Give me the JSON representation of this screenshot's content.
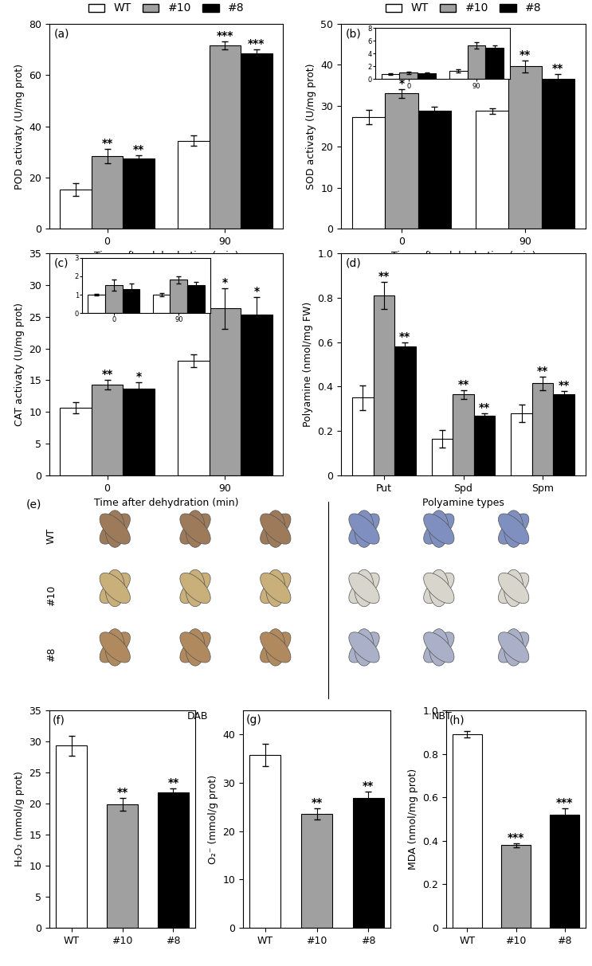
{
  "chart_data": [
    {
      "panel_label": "(a)",
      "type": "bar",
      "ylabel": "POD activaty (U/mg prot)",
      "xlabel": "Time after dehydration (min)",
      "categories": [
        "0",
        "90"
      ],
      "ylim": [
        0,
        80
      ],
      "yticks": [
        0,
        20,
        40,
        60,
        80
      ],
      "legend": "top",
      "series": [
        {
          "name": "WT",
          "color": "#ffffff",
          "values": [
            15.2,
            34.3
          ],
          "errors": [
            2.5,
            2.0
          ],
          "annotations": [
            null,
            null
          ]
        },
        {
          "name": "#10",
          "color": "#a0a0a0",
          "values": [
            28.2,
            71.6
          ],
          "errors": [
            2.8,
            1.5
          ],
          "annotations": [
            "**",
            "***"
          ]
        },
        {
          "name": "#8",
          "color": "#000000",
          "values": [
            27.4,
            68.5
          ],
          "errors": [
            1.3,
            1.5
          ],
          "annotations": [
            "**",
            "***"
          ]
        }
      ]
    },
    {
      "panel_label": "(b)",
      "type": "bar",
      "ylabel": "SOD activaty (U/mg prot)",
      "xlabel": "Time after dehydration (min)",
      "categories": [
        "0",
        "90"
      ],
      "ylim": [
        0,
        50
      ],
      "yticks": [
        0,
        10,
        20,
        30,
        40,
        50
      ],
      "legend": "top",
      "series": [
        {
          "name": "WT",
          "color": "#ffffff",
          "values": [
            27.2,
            28.7
          ],
          "errors": [
            1.8,
            0.7
          ],
          "annotations": [
            null,
            null
          ]
        },
        {
          "name": "#10",
          "color": "#a0a0a0",
          "values": [
            33.0,
            39.6
          ],
          "errors": [
            1.0,
            1.5
          ],
          "annotations": [
            "*",
            "**"
          ]
        },
        {
          "name": "#8",
          "color": "#000000",
          "values": [
            28.8,
            36.6
          ],
          "errors": [
            0.9,
            1.2
          ],
          "annotations": [
            null,
            "**"
          ]
        }
      ],
      "inset": {
        "type": "bar",
        "categories": [
          "0",
          "90"
        ],
        "ylim": [
          0,
          8
        ],
        "yticks": [
          0,
          2,
          4,
          6,
          8
        ],
        "series": [
          {
            "name": "WT",
            "color": "#ffffff",
            "values": [
              0.8,
              1.3
            ],
            "errors": [
              0.15,
              0.2
            ]
          },
          {
            "name": "#10",
            "color": "#a0a0a0",
            "values": [
              1.0,
              5.3
            ],
            "errors": [
              0.2,
              0.5
            ]
          },
          {
            "name": "#8",
            "color": "#000000",
            "values": [
              0.9,
              4.9
            ],
            "errors": [
              0.15,
              0.4
            ]
          }
        ]
      }
    },
    {
      "panel_label": "(c)",
      "type": "bar",
      "ylabel": "CAT activaty (U/mg prot)",
      "xlabel": "Time after dehydration (min)",
      "categories": [
        "0",
        "90"
      ],
      "ylim": [
        0,
        35
      ],
      "yticks": [
        0,
        5,
        10,
        15,
        20,
        25,
        30,
        35
      ],
      "series": [
        {
          "name": "WT",
          "color": "#ffffff",
          "values": [
            10.7,
            18.1
          ],
          "errors": [
            0.9,
            1.0
          ],
          "annotations": [
            null,
            null
          ]
        },
        {
          "name": "#10",
          "color": "#a0a0a0",
          "values": [
            14.3,
            26.3
          ],
          "errors": [
            0.8,
            3.2
          ],
          "annotations": [
            "**",
            "*"
          ]
        },
        {
          "name": "#8",
          "color": "#000000",
          "values": [
            13.7,
            25.3
          ],
          "errors": [
            1.0,
            2.8
          ],
          "annotations": [
            "*",
            "*"
          ]
        }
      ],
      "inset": {
        "type": "bar",
        "categories": [
          "0",
          "90"
        ],
        "ylim": [
          0,
          3
        ],
        "yticks": [
          0,
          1,
          2,
          3
        ],
        "series": [
          {
            "name": "WT",
            "color": "#ffffff",
            "values": [
              1.0,
              1.0
            ],
            "errors": [
              0.05,
              0.1
            ]
          },
          {
            "name": "#10",
            "color": "#a0a0a0",
            "values": [
              1.5,
              1.8
            ],
            "errors": [
              0.3,
              0.2
            ]
          },
          {
            "name": "#8",
            "color": "#000000",
            "values": [
              1.3,
              1.5
            ],
            "errors": [
              0.3,
              0.2
            ]
          }
        ]
      }
    },
    {
      "panel_label": "(d)",
      "type": "bar",
      "ylabel": "Polyamine (nmol/mg FW)",
      "xlabel": "Polyamine types",
      "categories": [
        "Put",
        "Spd",
        "Spm"
      ],
      "ylim": [
        0,
        1.0
      ],
      "yticks": [
        0,
        0.2,
        0.4,
        0.6,
        0.8,
        1.0
      ],
      "series": [
        {
          "name": "WT",
          "color": "#ffffff",
          "values": [
            0.35,
            0.165,
            0.28
          ],
          "errors": [
            0.055,
            0.04,
            0.04
          ],
          "annotations": [
            null,
            null,
            null
          ]
        },
        {
          "name": "#10",
          "color": "#a0a0a0",
          "values": [
            0.81,
            0.365,
            0.415
          ],
          "errors": [
            0.06,
            0.02,
            0.03
          ],
          "annotations": [
            "**",
            "**",
            "**"
          ]
        },
        {
          "name": "#8",
          "color": "#000000",
          "values": [
            0.58,
            0.27,
            0.365
          ],
          "errors": [
            0.02,
            0.01,
            0.015
          ],
          "annotations": [
            "**",
            "**",
            "**"
          ]
        }
      ]
    },
    {
      "panel_label": "(f)",
      "type": "bar",
      "ylabel": "H₂O₂ (mmol/g prot)",
      "categories": [
        "WT",
        "#10",
        "#8"
      ],
      "ylim": [
        0,
        35
      ],
      "yticks": [
        0,
        5,
        10,
        15,
        20,
        25,
        30,
        35
      ],
      "values": [
        29.3,
        19.9,
        21.8
      ],
      "errors": [
        1.6,
        1.0,
        0.6
      ],
      "annotations": [
        null,
        "**",
        "**"
      ],
      "colors": [
        "#ffffff",
        "#a0a0a0",
        "#000000"
      ]
    },
    {
      "panel_label": "(g)",
      "type": "bar",
      "ylabel": "O₂⁻ (mmol/g prot)",
      "categories": [
        "WT",
        "#10",
        "#8"
      ],
      "ylim": [
        0,
        45
      ],
      "yticks": [
        0,
        10,
        20,
        30,
        40
      ],
      "values": [
        35.8,
        23.6,
        26.9
      ],
      "errors": [
        2.3,
        1.2,
        1.3
      ],
      "annotations": [
        null,
        "**",
        "**"
      ],
      "colors": [
        "#ffffff",
        "#a0a0a0",
        "#000000"
      ]
    },
    {
      "panel_label": "(h)",
      "type": "bar",
      "ylabel": "MDA (nmol/mg prot)",
      "categories": [
        "WT",
        "#10",
        "#8"
      ],
      "ylim": [
        0,
        1.0
      ],
      "yticks": [
        0,
        0.2,
        0.4,
        0.6,
        0.8,
        1.0
      ],
      "values": [
        0.89,
        0.38,
        0.52
      ],
      "errors": [
        0.015,
        0.01,
        0.03
      ],
      "annotations": [
        null,
        "***",
        "***"
      ],
      "colors": [
        "#ffffff",
        "#a0a0a0",
        "#000000"
      ]
    }
  ],
  "image_panel": {
    "panel_label": "(e)",
    "rows": [
      "WT",
      "#10",
      "#8"
    ],
    "columns": [
      "DAB",
      "NBT"
    ]
  }
}
